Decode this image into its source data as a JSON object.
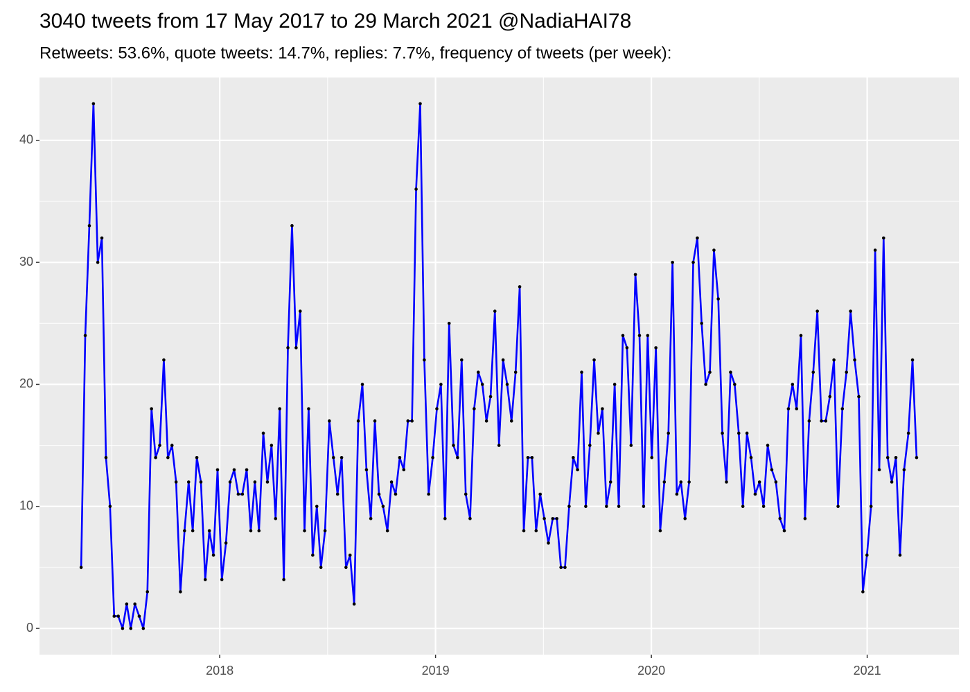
{
  "chart_data": {
    "type": "line",
    "title": "3040 tweets from 17 May 2017 to 29 March 2021 @NadiaHAI78",
    "subtitle": "Retweets: 53.6%, quote tweets: 14.7%, replies: 7.7%, frequency of tweets (per week):",
    "color": "#0000ff",
    "point_color": "#000000",
    "grid": true,
    "xlim": [
      2017.165,
      2021.425
    ],
    "xticks": [
      2018,
      2019,
      2020,
      2021
    ],
    "xminor": [
      2017.5,
      2018.5,
      2019.5,
      2020.5
    ],
    "ylim": [
      -2.15,
      45.15
    ],
    "yticks": [
      0,
      10,
      20,
      30,
      40
    ],
    "yminor": [
      5,
      15,
      25,
      35
    ],
    "x": [
      2017.358,
      2017.377,
      2017.396,
      2017.415,
      2017.435,
      2017.454,
      2017.473,
      2017.492,
      2017.511,
      2017.53,
      2017.55,
      2017.569,
      2017.588,
      2017.607,
      2017.627,
      2017.646,
      2017.665,
      2017.684,
      2017.703,
      2017.722,
      2017.741,
      2017.76,
      2017.779,
      2017.798,
      2017.818,
      2017.837,
      2017.856,
      2017.875,
      2017.894,
      2017.913,
      2017.933,
      2017.952,
      2017.971,
      2017.99,
      2018.01,
      2018.029,
      2018.048,
      2018.067,
      2018.086,
      2018.105,
      2018.125,
      2018.144,
      2018.163,
      2018.182,
      2018.202,
      2018.221,
      2018.24,
      2018.259,
      2018.278,
      2018.297,
      2018.316,
      2018.335,
      2018.354,
      2018.373,
      2018.393,
      2018.412,
      2018.431,
      2018.45,
      2018.469,
      2018.488,
      2018.508,
      2018.527,
      2018.546,
      2018.565,
      2018.585,
      2018.604,
      2018.623,
      2018.642,
      2018.661,
      2018.68,
      2018.7,
      2018.719,
      2018.738,
      2018.757,
      2018.777,
      2018.796,
      2018.815,
      2018.834,
      2018.853,
      2018.872,
      2018.891,
      2018.91,
      2018.929,
      2018.948,
      2018.968,
      2018.987,
      2019.006,
      2019.025,
      2019.044,
      2019.063,
      2019.083,
      2019.102,
      2019.121,
      2019.14,
      2019.16,
      2019.179,
      2019.198,
      2019.217,
      2019.236,
      2019.255,
      2019.275,
      2019.294,
      2019.313,
      2019.332,
      2019.352,
      2019.371,
      2019.39,
      2019.409,
      2019.428,
      2019.447,
      2019.466,
      2019.485,
      2019.504,
      2019.523,
      2019.543,
      2019.562,
      2019.581,
      2019.6,
      2019.619,
      2019.638,
      2019.658,
      2019.677,
      2019.696,
      2019.715,
      2019.735,
      2019.754,
      2019.773,
      2019.792,
      2019.811,
      2019.83,
      2019.849,
      2019.868,
      2019.887,
      2019.906,
      2019.926,
      2019.945,
      2019.964,
      2019.983,
      2020.002,
      2020.021,
      2020.041,
      2020.06,
      2020.079,
      2020.098,
      2020.118,
      2020.137,
      2020.156,
      2020.175,
      2020.194,
      2020.213,
      2020.233,
      2020.252,
      2020.271,
      2020.29,
      2020.31,
      2020.329,
      2020.348,
      2020.367,
      2020.386,
      2020.405,
      2020.424,
      2020.443,
      2020.462,
      2020.481,
      2020.501,
      2020.52,
      2020.539,
      2020.558,
      2020.577,
      2020.596,
      2020.616,
      2020.635,
      2020.654,
      2020.673,
      2020.693,
      2020.712,
      2020.731,
      2020.75,
      2020.769,
      2020.788,
      2020.808,
      2020.827,
      2020.846,
      2020.865,
      2020.885,
      2020.904,
      2020.923,
      2020.942,
      2020.961,
      2020.98,
      2020.999,
      2021.018,
      2021.037,
      2021.056,
      2021.076,
      2021.095,
      2021.114,
      2021.133,
      2021.152,
      2021.171,
      2021.191,
      2021.21,
      2021.229
    ],
    "values": [
      5,
      24,
      33,
      43,
      30,
      32,
      14,
      10,
      1,
      1,
      0,
      2,
      0,
      2,
      1,
      0,
      3,
      18,
      14,
      15,
      22,
      14,
      15,
      12,
      3,
      8,
      12,
      8,
      14,
      12,
      4,
      8,
      6,
      13,
      4,
      7,
      12,
      13,
      11,
      11,
      13,
      8,
      12,
      8,
      16,
      12,
      15,
      9,
      18,
      4,
      23,
      33,
      23,
      26,
      8,
      18,
      6,
      10,
      5,
      8,
      17,
      14,
      11,
      14,
      5,
      6,
      2,
      17,
      20,
      13,
      9,
      17,
      11,
      10,
      8,
      12,
      11,
      14,
      13,
      17,
      17,
      36,
      43,
      22,
      11,
      14,
      18,
      20,
      9,
      25,
      15,
      14,
      22,
      11,
      9,
      18,
      21,
      20,
      17,
      19,
      26,
      15,
      22,
      20,
      17,
      21,
      28,
      8,
      14,
      14,
      8,
      11,
      9,
      7,
      9,
      9,
      5,
      5,
      10,
      14,
      13,
      21,
      10,
      15,
      22,
      16,
      18,
      10,
      12,
      20,
      10,
      24,
      23,
      15,
      29,
      24,
      10,
      24,
      14,
      23,
      8,
      12,
      16,
      30,
      11,
      12,
      9,
      12,
      30,
      32,
      25,
      20,
      21,
      31,
      27,
      16,
      12,
      21,
      20,
      16,
      10,
      16,
      14,
      11,
      12,
      10,
      15,
      13,
      12,
      9,
      8,
      18,
      20,
      18,
      24,
      9,
      17,
      21,
      26,
      17,
      17,
      19,
      22,
      10,
      18,
      21,
      26,
      22,
      19,
      3,
      6,
      10,
      31,
      13,
      32,
      14,
      12,
      14,
      6,
      13,
      16,
      22,
      14
    ]
  }
}
